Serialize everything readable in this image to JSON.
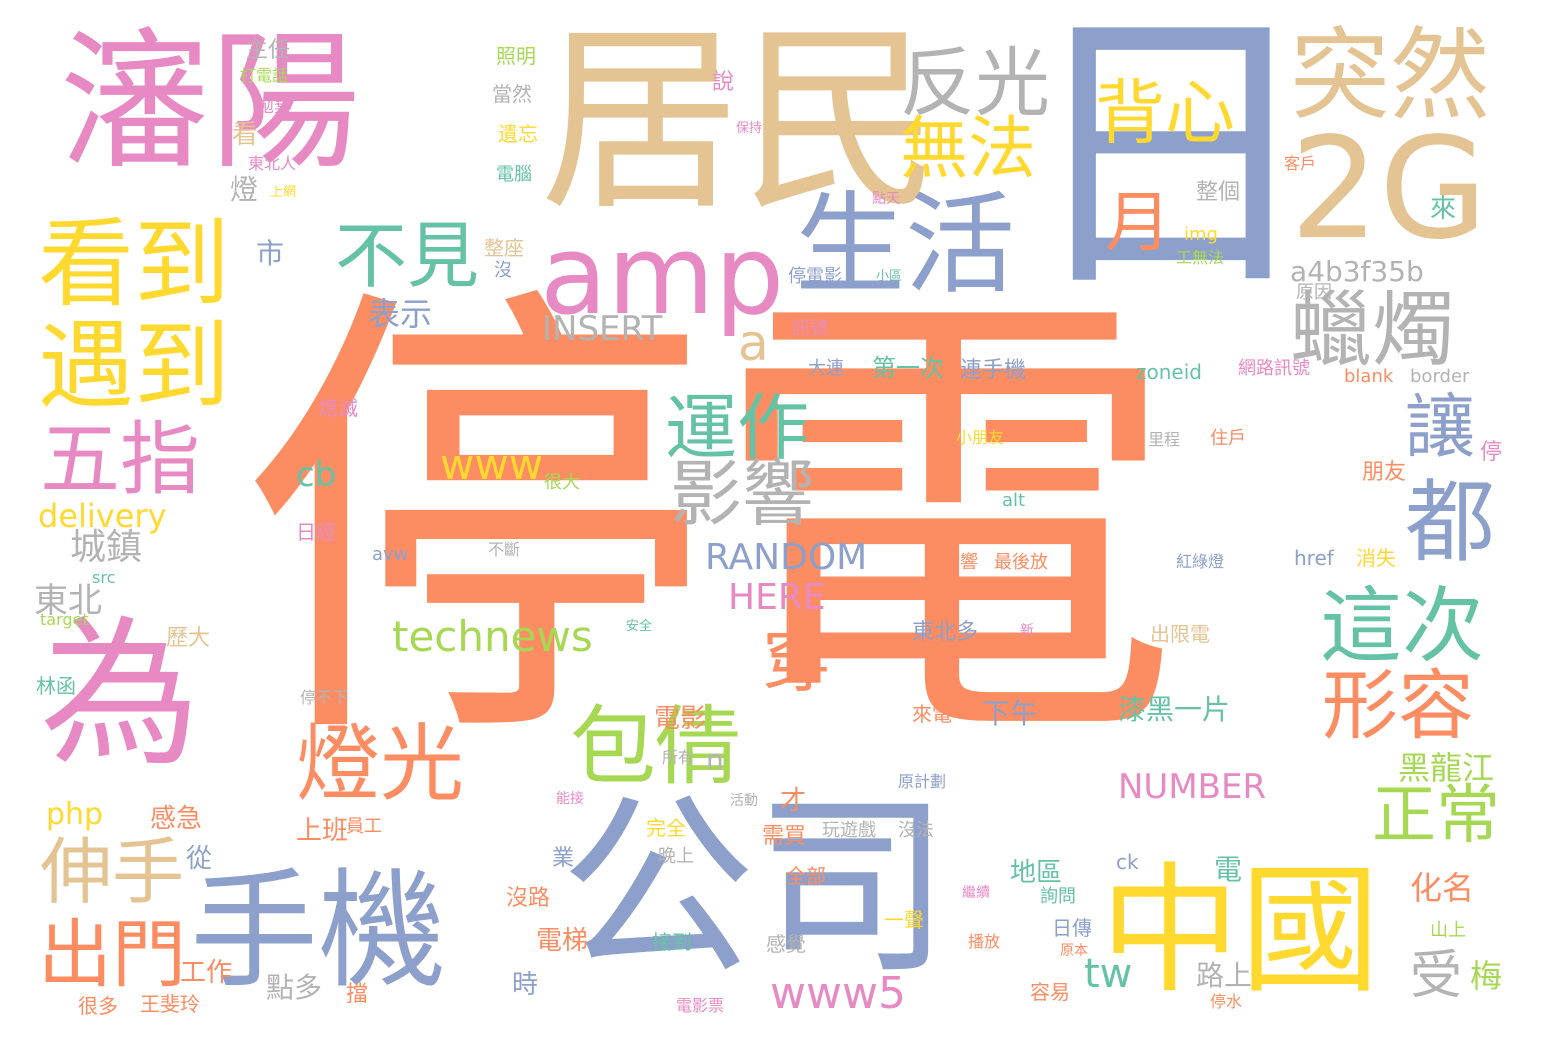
{
  "palette": {
    "orange": "#fc8d62",
    "blue": "#8da0cb",
    "tan": "#e5c494",
    "pink": "#e78ac3",
    "yellow": "#ffd92f",
    "green": "#66c2a5",
    "lime": "#a6d854",
    "gray": "#b3b3b3"
  },
  "words": [
    {
      "id": "w1",
      "text": "停電",
      "color": "orange"
    },
    {
      "id": "w2",
      "text": "居民",
      "color": "tan"
    },
    {
      "id": "w3",
      "text": "日",
      "color": "blue"
    },
    {
      "id": "w4",
      "text": "瀋陽",
      "color": "pink"
    },
    {
      "id": "w5",
      "text": "突然",
      "color": "tan"
    },
    {
      "id": "w6",
      "text": "2G",
      "color": "tan"
    },
    {
      "id": "w7",
      "text": "反光",
      "color": "gray"
    },
    {
      "id": "w8",
      "text": "背心",
      "color": "yellow"
    },
    {
      "id": "w9",
      "text": "無法",
      "color": "yellow"
    },
    {
      "id": "w10",
      "text": "看到",
      "color": "yellow"
    },
    {
      "id": "w11",
      "text": "遇到",
      "color": "yellow"
    },
    {
      "id": "w12",
      "text": "amp",
      "color": "pink"
    },
    {
      "id": "w13",
      "text": "生活",
      "color": "blue"
    },
    {
      "id": "w14",
      "text": "不見",
      "color": "green"
    },
    {
      "id": "w15",
      "text": "月",
      "color": "orange"
    },
    {
      "id": "w16",
      "text": "蠟燭",
      "color": "gray"
    },
    {
      "id": "w17",
      "text": "a4b3f35b",
      "color": "gray"
    },
    {
      "id": "w18",
      "text": "a",
      "color": "tan"
    },
    {
      "id": "w19",
      "text": "為",
      "color": "pink"
    },
    {
      "id": "w20",
      "text": "五指",
      "color": "pink"
    },
    {
      "id": "w21",
      "text": "表示",
      "color": "blue"
    },
    {
      "id": "w22",
      "text": "INSERT",
      "color": "gray"
    },
    {
      "id": "w23",
      "text": "運作",
      "color": "green"
    },
    {
      "id": "w24",
      "text": "影響",
      "color": "gray"
    },
    {
      "id": "w25",
      "text": "讓",
      "color": "blue"
    },
    {
      "id": "w26",
      "text": "都",
      "color": "blue"
    },
    {
      "id": "w27",
      "text": "這次",
      "color": "green"
    },
    {
      "id": "w28",
      "text": "形容",
      "color": "orange"
    },
    {
      "id": "w29",
      "text": "www",
      "color": "yellow"
    },
    {
      "id": "w30",
      "text": "cb",
      "color": "green"
    },
    {
      "id": "w31",
      "text": "delivery",
      "color": "yellow"
    },
    {
      "id": "w32",
      "text": "城鎮",
      "color": "gray"
    },
    {
      "id": "w33",
      "text": "RANDOM",
      "color": "blue"
    },
    {
      "id": "w34",
      "text": "HERE",
      "color": "pink"
    },
    {
      "id": "w35",
      "text": "東北",
      "color": "gray"
    },
    {
      "id": "w36",
      "text": "technews",
      "color": "lime"
    },
    {
      "id": "w37",
      "text": "穿",
      "color": "orange"
    },
    {
      "id": "w38",
      "text": "燈光",
      "color": "orange"
    },
    {
      "id": "w39",
      "text": "包",
      "color": "lime"
    },
    {
      "id": "w40",
      "text": "倩",
      "color": "lime"
    },
    {
      "id": "w41",
      "text": "正常",
      "color": "lime"
    },
    {
      "id": "w42",
      "text": "伸手",
      "color": "tan"
    },
    {
      "id": "w43",
      "text": "手機",
      "color": "blue"
    },
    {
      "id": "w44",
      "text": "公司",
      "color": "blue"
    },
    {
      "id": "w45",
      "text": "中國",
      "color": "yellow"
    },
    {
      "id": "w46",
      "text": "出門",
      "color": "orange"
    },
    {
      "id": "w47",
      "text": "www5",
      "color": "pink"
    },
    {
      "id": "w48",
      "text": "tw",
      "color": "green"
    },
    {
      "id": "w49",
      "text": "NUMBER",
      "color": "pink"
    },
    {
      "id": "w50",
      "text": "黑龍江",
      "color": "lime"
    },
    {
      "id": "w51",
      "text": "化名",
      "color": "orange"
    },
    {
      "id": "w52",
      "text": "受",
      "color": "gray"
    },
    {
      "id": "w53",
      "text": "梅",
      "color": "lime"
    },
    {
      "id": "w54",
      "text": "php",
      "color": "yellow"
    },
    {
      "id": "w55",
      "text": "感急",
      "color": "orange"
    },
    {
      "id": "w56",
      "text": "上班",
      "color": "orange"
    },
    {
      "id": "w57",
      "text": "電影",
      "color": "orange"
    },
    {
      "id": "w58",
      "text": "n",
      "color": "gray"
    },
    {
      "id": "w59",
      "text": "點多",
      "color": "gray"
    },
    {
      "id": "w60",
      "text": "工作",
      "color": "orange"
    },
    {
      "id": "w61",
      "text": "電梯",
      "color": "orange"
    },
    {
      "id": "w62",
      "text": "地區",
      "color": "green"
    },
    {
      "id": "w63",
      "text": "電",
      "color": "green"
    },
    {
      "id": "w64",
      "text": "路上",
      "color": "gray"
    },
    {
      "id": "w65",
      "text": "下午",
      "color": "blue"
    },
    {
      "id": "w66",
      "text": "漆黑一片",
      "color": "green"
    },
    {
      "id": "w67",
      "text": "東北多",
      "color": "blue"
    },
    {
      "id": "w68",
      "text": "來電",
      "color": "orange"
    },
    {
      "id": "w69",
      "text": "主任",
      "color": "gray"
    },
    {
      "id": "w70",
      "text": "照明",
      "color": "lime"
    },
    {
      "id": "w71",
      "text": "當然",
      "color": "gray"
    },
    {
      "id": "w72",
      "text": "遺忘",
      "color": "yellow"
    },
    {
      "id": "w73",
      "text": "電腦",
      "color": "green"
    },
    {
      "id": "w74",
      "text": "整座",
      "color": "tan"
    },
    {
      "id": "w75",
      "text": "沒",
      "color": "blue"
    },
    {
      "id": "w76",
      "text": "看",
      "color": "tan"
    },
    {
      "id": "w77",
      "text": "燈",
      "color": "gray"
    },
    {
      "id": "w78",
      "text": "市",
      "color": "blue"
    },
    {
      "id": "w79",
      "text": "打電話",
      "color": "lime"
    },
    {
      "id": "w80",
      "text": "拋棄",
      "color": "pink"
    },
    {
      "id": "w81",
      "text": "東北人",
      "color": "pink"
    },
    {
      "id": "w82",
      "text": "上網",
      "color": "yellow"
    },
    {
      "id": "w83",
      "text": "說",
      "color": "pink"
    },
    {
      "id": "w84",
      "text": "整個",
      "color": "gray"
    },
    {
      "id": "w85",
      "text": "img",
      "color": "yellow"
    },
    {
      "id": "w86",
      "text": "來",
      "color": "green"
    },
    {
      "id": "w87",
      "text": "客戶",
      "color": "orange"
    },
    {
      "id": "w88",
      "text": "停電影",
      "color": "blue"
    },
    {
      "id": "w89",
      "text": "原因",
      "color": "gray"
    },
    {
      "id": "w90",
      "text": "訊號",
      "color": "pink"
    },
    {
      "id": "w91",
      "text": "大連",
      "color": "blue"
    },
    {
      "id": "w92",
      "text": "第一次",
      "color": "green"
    },
    {
      "id": "w93",
      "text": "連手機",
      "color": "blue"
    },
    {
      "id": "w94",
      "text": "zoneid",
      "color": "green"
    },
    {
      "id": "w95",
      "text": "網路訊號",
      "color": "pink"
    },
    {
      "id": "w96",
      "text": "blank",
      "color": "orange"
    },
    {
      "id": "w97",
      "text": "border",
      "color": "gray"
    },
    {
      "id": "w98",
      "text": "嚴重",
      "color": "orange"
    },
    {
      "id": "w99",
      "text": "熄滅",
      "color": "pink"
    },
    {
      "id": "w100",
      "text": "小朋友",
      "color": "yellow"
    },
    {
      "id": "w101",
      "text": "里程",
      "color": "gray"
    },
    {
      "id": "w102",
      "text": "住戶",
      "color": "orange"
    },
    {
      "id": "w103",
      "text": "停",
      "color": "pink"
    },
    {
      "id": "w104",
      "text": "朋友",
      "color": "orange"
    },
    {
      "id": "w105",
      "text": "很大",
      "color": "lime"
    },
    {
      "id": "w106",
      "text": "alt",
      "color": "green"
    },
    {
      "id": "w107",
      "text": "日經",
      "color": "pink"
    },
    {
      "id": "w108",
      "text": "avw",
      "color": "blue"
    },
    {
      "id": "w109",
      "text": "不斷",
      "color": "gray"
    },
    {
      "id": "w110",
      "text": "不斷響",
      "color": "orange"
    },
    {
      "id": "w111",
      "text": "最後放",
      "color": "orange"
    },
    {
      "id": "w112",
      "text": "紅綠燈",
      "color": "blue"
    },
    {
      "id": "w113",
      "text": "href",
      "color": "blue"
    },
    {
      "id": "w114",
      "text": "消失",
      "color": "yellow"
    },
    {
      "id": "w115",
      "text": "src",
      "color": "green"
    },
    {
      "id": "w116",
      "text": "target",
      "color": "lime"
    },
    {
      "id": "w117",
      "text": "歷大",
      "color": "tan"
    },
    {
      "id": "w118",
      "text": "林函",
      "color": "green"
    },
    {
      "id": "w119",
      "text": "停不下",
      "color": "gray"
    },
    {
      "id": "w120",
      "text": "出限電",
      "color": "tan"
    },
    {
      "id": "w121",
      "text": "安全",
      "color": "green"
    },
    {
      "id": "w122",
      "text": "新",
      "color": "pink"
    },
    {
      "id": "w123",
      "text": "所有",
      "color": "gray"
    },
    {
      "id": "w124",
      "text": "原計劃",
      "color": "blue"
    },
    {
      "id": "w125",
      "text": "才",
      "color": "orange"
    },
    {
      "id": "w126",
      "text": "活動",
      "color": "gray"
    },
    {
      "id": "w127",
      "text": "員工",
      "color": "orange"
    },
    {
      "id": "w128",
      "text": "完全",
      "color": "yellow"
    },
    {
      "id": "w129",
      "text": "需買",
      "color": "orange"
    },
    {
      "id": "w130",
      "text": "玩遊戲",
      "color": "gray"
    },
    {
      "id": "w131",
      "text": "沒法",
      "color": "gray"
    },
    {
      "id": "w132",
      "text": "晚上",
      "color": "gray"
    },
    {
      "id": "w133",
      "text": "從",
      "color": "blue"
    },
    {
      "id": "w134",
      "text": "ck",
      "color": "blue"
    },
    {
      "id": "w135",
      "text": "詢問",
      "color": "green"
    },
    {
      "id": "w136",
      "text": "全部",
      "color": "orange"
    },
    {
      "id": "w137",
      "text": "一聲",
      "color": "yellow"
    },
    {
      "id": "w138",
      "text": "業",
      "color": "blue"
    },
    {
      "id": "w139",
      "text": "沒路",
      "color": "orange"
    },
    {
      "id": "w140",
      "text": "接到",
      "color": "green"
    },
    {
      "id": "w141",
      "text": "感覺",
      "color": "gray"
    },
    {
      "id": "w142",
      "text": "日傳",
      "color": "blue"
    },
    {
      "id": "w143",
      "text": "播放",
      "color": "orange"
    },
    {
      "id": "w144",
      "text": "容易",
      "color": "orange"
    },
    {
      "id": "w145",
      "text": "山上",
      "color": "lime"
    },
    {
      "id": "w146",
      "text": "停水",
      "color": "orange"
    },
    {
      "id": "w147",
      "text": "時",
      "color": "blue"
    },
    {
      "id": "w148",
      "text": "很多",
      "color": "orange"
    },
    {
      "id": "w149",
      "text": "王斐玲",
      "color": "orange"
    },
    {
      "id": "w150",
      "text": "電影票",
      "color": "pink"
    },
    {
      "id": "w151",
      "text": "工無法",
      "color": "lime"
    },
    {
      "id": "w152",
      "text": "小區",
      "color": "green"
    },
    {
      "id": "w153",
      "text": "點天",
      "color": "pink"
    },
    {
      "id": "w154",
      "text": "保持",
      "color": "pink"
    },
    {
      "id": "w155",
      "text": "能接",
      "color": "pink"
    },
    {
      "id": "w156",
      "text": "繼續",
      "color": "pink"
    },
    {
      "id": "w157",
      "text": "原本",
      "color": "orange"
    },
    {
      "id": "w158",
      "text": "擋",
      "color": "orange"
    }
  ]
}
